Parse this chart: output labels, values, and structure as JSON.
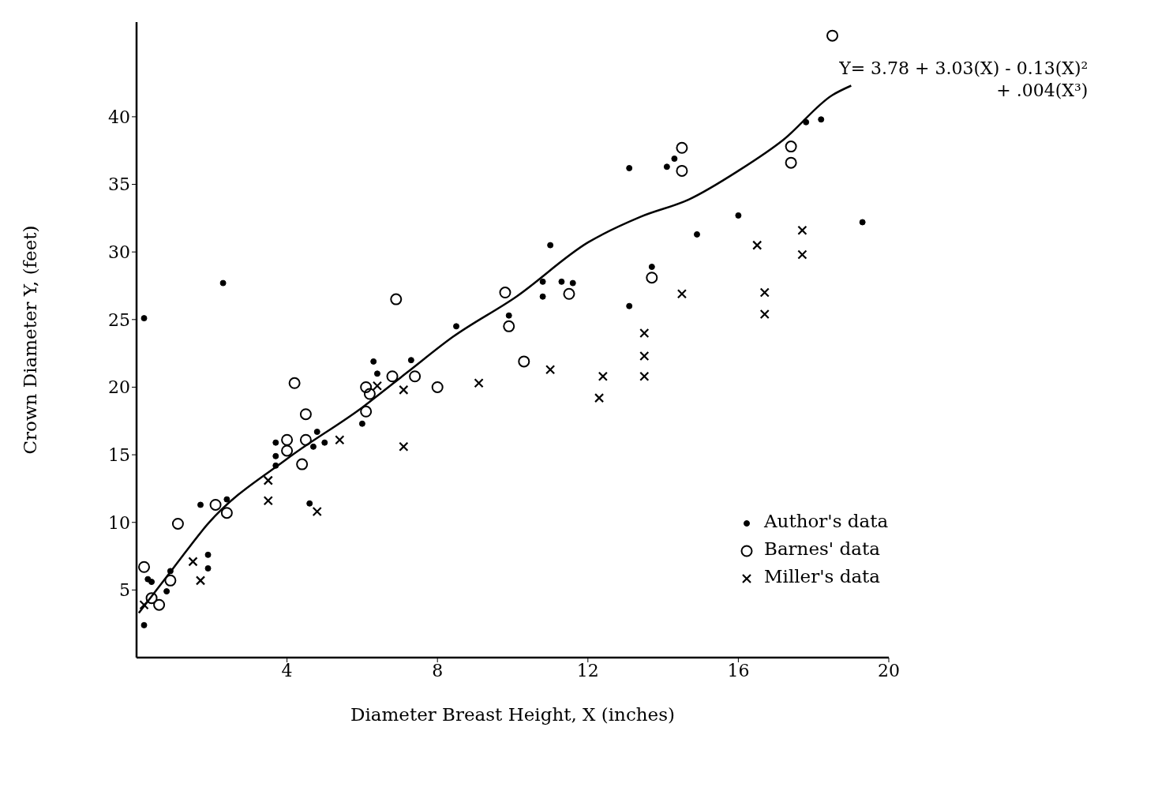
{
  "chart_data": {
    "type": "scatter",
    "xlabel": "Diameter Breast Height, X (inches)",
    "ylabel": "Crown Diameter Y, (feet)",
    "xlim": [
      0,
      20
    ],
    "xticks": [
      4,
      8,
      12,
      16,
      20
    ],
    "ylim": [
      0,
      47
    ],
    "yticks": [
      5,
      10,
      15,
      20,
      25,
      30,
      35,
      40
    ],
    "grid": false,
    "legend": "right",
    "series": [
      {
        "name": "Author's data",
        "type": "scatter",
        "marker": "circle",
        "color": "#000000",
        "x": [
          2.3,
          0.2,
          6.3,
          6.4,
          6.0,
          3.7,
          3.7,
          3.7,
          4.8,
          5.0,
          4.7,
          2.4,
          1.7,
          4.6,
          1.9,
          1.9,
          0.9,
          0.8,
          0.3,
          0.4,
          0.2,
          7.3,
          8.5,
          10.8,
          10.8,
          11.3,
          11.6,
          9.9,
          13.1,
          13.1,
          14.1,
          14.3,
          11.0,
          14.9,
          16.0,
          13.7,
          17.8,
          18.2,
          19.3
        ],
        "values": [
          27.7,
          25.1,
          21.9,
          21.0,
          17.3,
          15.9,
          14.9,
          14.2,
          16.7,
          15.9,
          15.6,
          11.7,
          11.3,
          11.4,
          7.6,
          6.6,
          6.4,
          4.9,
          5.8,
          5.6,
          2.4,
          22.0,
          24.5,
          27.8,
          26.7,
          27.8,
          27.7,
          25.3,
          26.0,
          36.2,
          36.3,
          36.9,
          30.5,
          31.3,
          32.7,
          28.9,
          39.6,
          39.8,
          32.2
        ]
      },
      {
        "name": "Barnes' data",
        "type": "scatter",
        "marker": "circle",
        "color": "#000000",
        "x": [
          4.2,
          4.5,
          4.0,
          4.0,
          4.5,
          4.4,
          6.1,
          6.2,
          6.1,
          2.1,
          2.4,
          1.1,
          0.2,
          0.9,
          0.4,
          0.6,
          6.9,
          6.8,
          7.4,
          8.0,
          9.8,
          9.9,
          11.5,
          10.3,
          13.7,
          14.5,
          14.5,
          17.4,
          17.4,
          18.5
        ],
        "values": [
          20.3,
          18.0,
          16.1,
          15.3,
          16.1,
          14.3,
          20.0,
          19.5,
          18.2,
          11.3,
          10.7,
          9.9,
          6.7,
          5.7,
          4.4,
          3.9,
          26.5,
          20.8,
          20.8,
          20.0,
          27.0,
          24.5,
          26.9,
          21.9,
          28.1,
          37.7,
          36.0,
          37.8,
          36.6,
          46.0
        ]
      },
      {
        "name": "Miller's data",
        "type": "scatter",
        "marker": "cross",
        "color": "#000000",
        "x": [
          3.5,
          3.5,
          4.8,
          1.5,
          1.7,
          0.2,
          6.4,
          5.4,
          7.1,
          7.1,
          9.1,
          11.0,
          14.5,
          12.4,
          12.3,
          13.5,
          13.5,
          13.5,
          16.5,
          16.7,
          16.7,
          17.7,
          17.7
        ],
        "values": [
          13.1,
          11.6,
          10.8,
          7.1,
          5.7,
          3.9,
          20.1,
          16.1,
          19.8,
          15.6,
          20.3,
          21.3,
          26.9,
          20.8,
          19.2,
          20.8,
          22.3,
          24.0,
          30.5,
          27.0,
          25.4,
          31.6,
          29.8
        ]
      },
      {
        "type": "line",
        "line_style": "solid",
        "marker": "none",
        "color": "#000000",
        "x": [
          0.06,
          1.0,
          1.9,
          4.0,
          6.0,
          7.2,
          8.4,
          10.1,
          12.0,
          13.4,
          14.7,
          16.0,
          17.2,
          18.5,
          19.0
        ],
        "values": [
          3.3,
          6.7,
          9.9,
          14.7,
          18.5,
          21.1,
          23.7,
          26.7,
          30.7,
          32.6,
          33.9,
          36.0,
          38.3,
          41.6,
          42.3
        ]
      }
    ],
    "annotations": [
      {
        "text": "Y= 3.78 + 3.03(X) - 0.13(X)² + .004(X³)",
        "x": 19.0,
        "y": 42.3
      }
    ]
  }
}
